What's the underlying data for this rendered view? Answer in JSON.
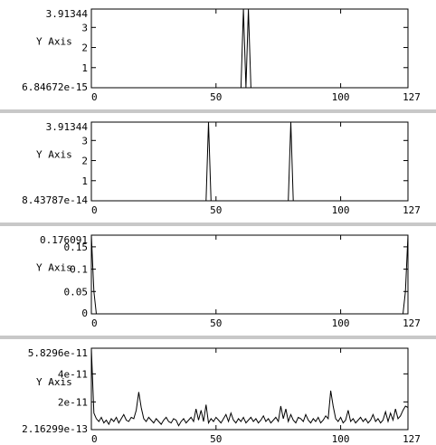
{
  "chart_data": [
    {
      "type": "line",
      "title": "",
      "xlabel": "",
      "ylabel": "Y Axis",
      "xlim": [
        0,
        127
      ],
      "ylim": [
        6.84672e-15,
        3.91344
      ],
      "y_min_label": "6.84672e-15",
      "y_max_label": "3.91344",
      "x_ticks": [
        "0",
        "50",
        "100",
        "127"
      ],
      "y_ticks": [
        {
          "v": 1,
          "label": "1"
        },
        {
          "v": 2,
          "label": "2"
        },
        {
          "v": 3,
          "label": "3"
        }
      ],
      "x": [
        0,
        60,
        61,
        62,
        63,
        64,
        65,
        127
      ],
      "y": [
        0,
        0,
        3.91344,
        0,
        3.91344,
        0,
        0,
        0
      ]
    },
    {
      "type": "line",
      "title": "",
      "xlabel": "",
      "ylabel": "Y Axis",
      "xlim": [
        0,
        127
      ],
      "ylim": [
        8.43787e-14,
        3.91344
      ],
      "y_min_label": "8.43787e-14",
      "y_max_label": "3.91344",
      "x_ticks": [
        "0",
        "50",
        "100",
        "127"
      ],
      "y_ticks": [
        {
          "v": 1,
          "label": "1"
        },
        {
          "v": 2,
          "label": "2"
        },
        {
          "v": 3,
          "label": "3"
        }
      ],
      "x": [
        0,
        46,
        47,
        48,
        79,
        80,
        81,
        127
      ],
      "y": [
        0,
        0,
        3.91344,
        0,
        0,
        3.91344,
        0,
        0
      ]
    },
    {
      "type": "line",
      "title": "",
      "xlabel": "",
      "ylabel": "Y Axis",
      "xlim": [
        0,
        127
      ],
      "ylim": [
        0,
        0.176091
      ],
      "y_min_label": "0",
      "y_max_label": "0.176091",
      "x_ticks": [
        "0",
        "50",
        "100",
        "127"
      ],
      "y_ticks": [
        {
          "v": 0.05,
          "label": "0.05"
        },
        {
          "v": 0.1,
          "label": "0.1"
        },
        {
          "v": 0.15,
          "label": "0.15"
        }
      ],
      "x": [
        0,
        1,
        2,
        125,
        126,
        127
      ],
      "y": [
        0.176091,
        0.05,
        0,
        0,
        0.05,
        0.176091
      ]
    },
    {
      "type": "line",
      "title": "",
      "xlabel": "",
      "ylabel": "Y Axis",
      "xlim": [
        0,
        127
      ],
      "ylim": [
        2.16299e-13,
        5.8296e-11
      ],
      "y_min_label": "2.16299e-13",
      "y_max_label": "5.8296e-11",
      "x_ticks": [
        "0",
        "50",
        "100",
        "127"
      ],
      "y_ticks": [
        {
          "v": 2e-11,
          "label": "2e-11"
        },
        {
          "v": 4e-11,
          "label": "4e-11"
        }
      ],
      "x": [
        0,
        1,
        2,
        3,
        4,
        5,
        6,
        7,
        8,
        9,
        10,
        11,
        12,
        13,
        14,
        15,
        16,
        17,
        18,
        19,
        20,
        21,
        22,
        23,
        24,
        25,
        26,
        27,
        28,
        29,
        30,
        31,
        32,
        33,
        34,
        35,
        36,
        37,
        38,
        39,
        40,
        41,
        42,
        43,
        44,
        45,
        46,
        47,
        48,
        49,
        50,
        51,
        52,
        53,
        54,
        55,
        56,
        57,
        58,
        59,
        60,
        61,
        62,
        63,
        64,
        65,
        66,
        67,
        68,
        69,
        70,
        71,
        72,
        73,
        74,
        75,
        76,
        77,
        78,
        79,
        80,
        81,
        82,
        83,
        84,
        85,
        86,
        87,
        88,
        89,
        90,
        91,
        92,
        93,
        94,
        95,
        96,
        97,
        98,
        99,
        100,
        101,
        102,
        103,
        104,
        105,
        106,
        107,
        108,
        109,
        110,
        111,
        112,
        113,
        114,
        115,
        116,
        117,
        118,
        119,
        120,
        121,
        122,
        123,
        124,
        125,
        126,
        127
      ],
      "y": [
        5.8e-11,
        1.2e-11,
        8e-12,
        6e-12,
        9e-12,
        5e-12,
        7e-12,
        4e-12,
        8e-12,
        6e-12,
        9e-12,
        5e-12,
        8e-12,
        1.1e-11,
        7e-12,
        6e-12,
        9e-12,
        8e-12,
        1.4e-11,
        2.7e-11,
        1.6e-11,
        8e-12,
        6e-12,
        9e-12,
        7e-12,
        5e-12,
        8e-12,
        6e-12,
        4e-12,
        7e-12,
        9e-12,
        6e-12,
        5e-12,
        8e-12,
        7e-12,
        3e-12,
        6e-12,
        8e-12,
        5e-12,
        7e-12,
        9e-12,
        6e-12,
        1.5e-11,
        7e-12,
        1.4e-11,
        6e-12,
        1.8e-11,
        5e-12,
        8e-12,
        6e-12,
        9e-12,
        7e-12,
        5e-12,
        8e-12,
        1.1e-11,
        6e-12,
        1.2e-11,
        7e-12,
        5e-12,
        8e-12,
        6e-12,
        9e-12,
        5e-12,
        7e-12,
        9e-12,
        6e-12,
        8e-12,
        5e-12,
        7e-12,
        1e-11,
        6e-12,
        8e-12,
        5e-12,
        7e-12,
        9e-12,
        6e-12,
        1.7e-11,
        8e-12,
        1.5e-11,
        6e-12,
        1.1e-11,
        7e-12,
        5e-12,
        9e-12,
        8e-12,
        6e-12,
        1.1e-11,
        7e-12,
        5e-12,
        8e-12,
        6e-12,
        9e-12,
        5e-12,
        7e-12,
        1e-11,
        8e-12,
        2.8e-11,
        1.7e-11,
        8e-12,
        6e-12,
        9e-12,
        5e-12,
        7e-12,
        1.4e-11,
        6e-12,
        8e-12,
        5e-12,
        7e-12,
        9e-12,
        6e-12,
        8e-12,
        5e-12,
        7e-12,
        1.1e-11,
        6e-12,
        8e-12,
        5e-12,
        7e-12,
        1.3e-11,
        6e-12,
        1.2e-11,
        7e-12,
        1.5e-11,
        8e-12,
        1e-11,
        1.4e-11,
        1.7e-11,
        1.6e-11
      ]
    }
  ]
}
